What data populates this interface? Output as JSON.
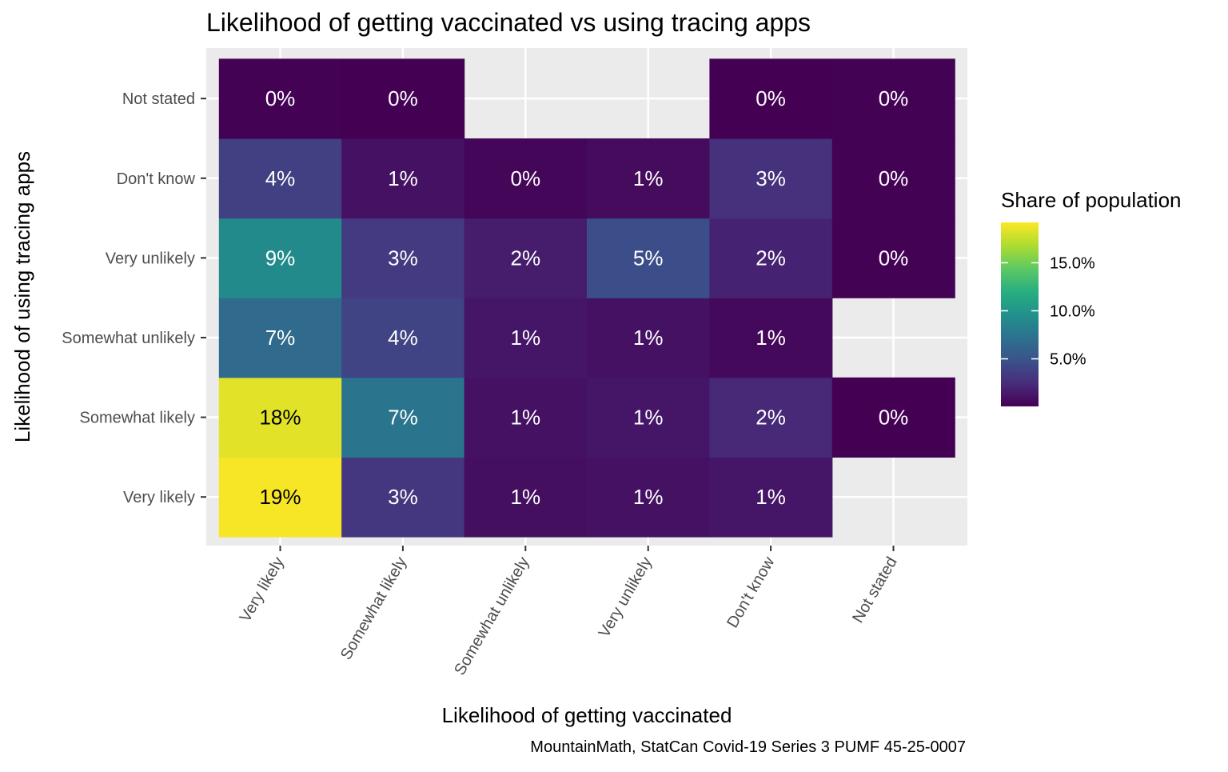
{
  "chart_data": {
    "type": "heatmap",
    "title": "Likelihood of getting vaccinated vs using tracing apps",
    "xlabel": "Likelihood of getting vaccinated",
    "ylabel": "Likelihood of using tracing apps",
    "caption": "MountainMath, StatCan Covid-19 Series 3 PUMF 45-25-0007",
    "x_categories": [
      "Very likely",
      "Somewhat likely",
      "Somewhat unlikely",
      "Very unlikely",
      "Don't know",
      "Not stated"
    ],
    "y_categories": [
      "Very likely",
      "Somewhat likely",
      "Somewhat unlikely",
      "Very unlikely",
      "Don't know",
      "Not stated"
    ],
    "legend": {
      "title": "Share of population",
      "position": "right",
      "ticks": [
        5,
        10,
        15
      ],
      "tick_labels": [
        "5.0%",
        "10.0%",
        "15.0%"
      ],
      "range": [
        0.05,
        19.2
      ]
    },
    "grid": true,
    "cells": [
      {
        "x": "Very likely",
        "y": "Very likely",
        "value": 19.0,
        "label": "19%"
      },
      {
        "x": "Somewhat likely",
        "y": "Very likely",
        "value": 3.1,
        "label": "3%"
      },
      {
        "x": "Somewhat unlikely",
        "y": "Very likely",
        "value": 0.8,
        "label": "1%"
      },
      {
        "x": "Very unlikely",
        "y": "Very likely",
        "value": 1.0,
        "label": "1%"
      },
      {
        "x": "Don't know",
        "y": "Very likely",
        "value": 1.2,
        "label": "1%"
      },
      {
        "x": "Very likely",
        "y": "Somewhat likely",
        "value": 18.4,
        "label": "18%"
      },
      {
        "x": "Somewhat likely",
        "y": "Somewhat likely",
        "value": 7.4,
        "label": "7%"
      },
      {
        "x": "Somewhat unlikely",
        "y": "Somewhat likely",
        "value": 0.9,
        "label": "1%"
      },
      {
        "x": "Very unlikely",
        "y": "Somewhat likely",
        "value": 1.2,
        "label": "1%"
      },
      {
        "x": "Don't know",
        "y": "Somewhat likely",
        "value": 2.2,
        "label": "2%"
      },
      {
        "x": "Not stated",
        "y": "Somewhat likely",
        "value": 0.05,
        "label": "0%"
      },
      {
        "x": "Very likely",
        "y": "Somewhat unlikely",
        "value": 6.6,
        "label": "7%"
      },
      {
        "x": "Somewhat likely",
        "y": "Somewhat unlikely",
        "value": 3.9,
        "label": "4%"
      },
      {
        "x": "Somewhat unlikely",
        "y": "Somewhat unlikely",
        "value": 1.2,
        "label": "1%"
      },
      {
        "x": "Very unlikely",
        "y": "Somewhat unlikely",
        "value": 0.9,
        "label": "1%"
      },
      {
        "x": "Don't know",
        "y": "Somewhat unlikely",
        "value": 0.5,
        "label": "1%"
      },
      {
        "x": "Very likely",
        "y": "Very unlikely",
        "value": 9.1,
        "label": "9%"
      },
      {
        "x": "Somewhat likely",
        "y": "Very unlikely",
        "value": 3.3,
        "label": "3%"
      },
      {
        "x": "Somewhat unlikely",
        "y": "Very unlikely",
        "value": 1.6,
        "label": "2%"
      },
      {
        "x": "Very unlikely",
        "y": "Very unlikely",
        "value": 4.6,
        "label": "5%"
      },
      {
        "x": "Don't know",
        "y": "Very unlikely",
        "value": 1.9,
        "label": "2%"
      },
      {
        "x": "Not stated",
        "y": "Very unlikely",
        "value": 0.1,
        "label": "0%"
      },
      {
        "x": "Very likely",
        "y": "Don't know",
        "value": 3.7,
        "label": "4%"
      },
      {
        "x": "Somewhat likely",
        "y": "Don't know",
        "value": 1.0,
        "label": "1%"
      },
      {
        "x": "Somewhat unlikely",
        "y": "Don't know",
        "value": 0.3,
        "label": "0%"
      },
      {
        "x": "Very unlikely",
        "y": "Don't know",
        "value": 0.6,
        "label": "1%"
      },
      {
        "x": "Don't know",
        "y": "Don't know",
        "value": 2.7,
        "label": "3%"
      },
      {
        "x": "Not stated",
        "y": "Don't know",
        "value": 0.1,
        "label": "0%"
      },
      {
        "x": "Very likely",
        "y": "Not stated",
        "value": 0.1,
        "label": "0%"
      },
      {
        "x": "Somewhat likely",
        "y": "Not stated",
        "value": 0.05,
        "label": "0%"
      },
      {
        "x": "Don't know",
        "y": "Not stated",
        "value": 0.05,
        "label": "0%"
      },
      {
        "x": "Not stated",
        "y": "Not stated",
        "value": 0.1,
        "label": "0%"
      }
    ]
  }
}
